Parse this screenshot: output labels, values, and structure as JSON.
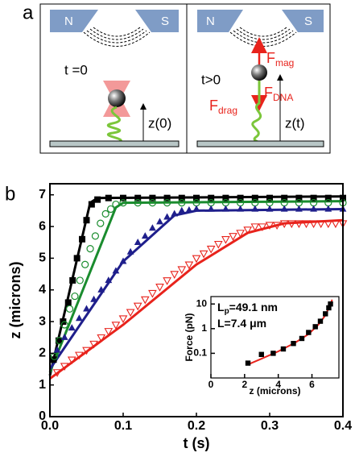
{
  "panel_a": {
    "label": "a",
    "left": {
      "north": "N",
      "south": "S",
      "time": "t =0",
      "height": "z(0)"
    },
    "right": {
      "north": "N",
      "south": "S",
      "time": "t>0",
      "height": "z(t)",
      "forces": [
        {
          "symbol": "F",
          "subscript": "mag"
        },
        {
          "symbol": "F",
          "subscript": "drag"
        },
        {
          "symbol": "F",
          "subscript": "DNA"
        }
      ]
    }
  },
  "chart_data": [
    {
      "type": "line",
      "panel_label": "b",
      "xlabel": "t (s)",
      "ylabel": "z (microns)",
      "xlim": [
        0,
        0.4
      ],
      "xticks": [
        {
          "value": 0,
          "label": "0.0"
        },
        0.1,
        0.2,
        0.3,
        0.4
      ],
      "ylim": [
        0,
        7.35
      ],
      "yticks": [
        0,
        1,
        2,
        3,
        4,
        5,
        6,
        7
      ],
      "series": [
        {
          "color": "#000000",
          "marker": "square",
          "x": [
            0.005,
            0.012,
            0.018,
            0.025,
            0.031,
            0.037,
            0.044,
            0.05,
            0.057,
            0.065,
            0.08,
            0.1,
            0.12,
            0.14,
            0.16,
            0.18,
            0.2,
            0.22,
            0.24,
            0.26,
            0.28,
            0.3,
            0.32,
            0.34,
            0.36,
            0.38,
            0.4
          ],
          "values": [
            1.8,
            2.4,
            3.0,
            3.6,
            4.3,
            5.0,
            5.6,
            6.2,
            6.7,
            6.85,
            6.9,
            6.9,
            6.9,
            6.9,
            6.9,
            6.9,
            6.9,
            6.9,
            6.9,
            6.9,
            6.9,
            6.9,
            6.9,
            6.9,
            6.9,
            6.9,
            6.9
          ]
        },
        {
          "color": "#1a8c2e",
          "marker": "circle",
          "x": [
            0.006,
            0.013,
            0.02,
            0.027,
            0.034,
            0.041,
            0.048,
            0.055,
            0.062,
            0.069,
            0.076,
            0.083,
            0.09,
            0.1,
            0.12,
            0.14,
            0.16,
            0.18,
            0.2,
            0.22,
            0.24,
            0.26,
            0.28,
            0.3,
            0.32,
            0.34,
            0.36,
            0.38,
            0.4
          ],
          "values": [
            1.9,
            2.4,
            2.9,
            3.4,
            3.8,
            4.3,
            4.8,
            5.3,
            5.7,
            6.1,
            6.4,
            6.55,
            6.7,
            6.75,
            6.75,
            6.75,
            6.75,
            6.75,
            6.75,
            6.75,
            6.75,
            6.75,
            6.75,
            6.75,
            6.75,
            6.75,
            6.75,
            6.75,
            6.75
          ]
        },
        {
          "color": "#1f1f8c",
          "marker": "triangle-up",
          "x": [
            0.01,
            0.02,
            0.03,
            0.04,
            0.05,
            0.06,
            0.07,
            0.08,
            0.09,
            0.1,
            0.11,
            0.12,
            0.13,
            0.14,
            0.15,
            0.16,
            0.17,
            0.18,
            0.19,
            0.2,
            0.22,
            0.24,
            0.26,
            0.28,
            0.3,
            0.32,
            0.34,
            0.36,
            0.38,
            0.4
          ],
          "values": [
            2.1,
            2.5,
            2.8,
            3.1,
            3.4,
            3.7,
            4.0,
            4.3,
            4.6,
            4.9,
            5.2,
            5.5,
            5.7,
            5.95,
            6.15,
            6.3,
            6.4,
            6.5,
            6.52,
            6.55,
            6.55,
            6.55,
            6.55,
            6.55,
            6.55,
            6.55,
            6.55,
            6.55,
            6.55,
            6.55
          ]
        },
        {
          "color": "#e8231c",
          "marker": "triangle-down-open",
          "x": [
            0.01,
            0.02,
            0.03,
            0.04,
            0.05,
            0.06,
            0.07,
            0.08,
            0.09,
            0.1,
            0.11,
            0.12,
            0.13,
            0.14,
            0.15,
            0.16,
            0.17,
            0.18,
            0.19,
            0.2,
            0.21,
            0.22,
            0.23,
            0.24,
            0.25,
            0.26,
            0.27,
            0.28,
            0.29,
            0.3,
            0.31,
            0.32,
            0.33,
            0.34,
            0.35,
            0.36,
            0.37,
            0.38,
            0.39,
            0.4
          ],
          "values": [
            1.4,
            1.6,
            1.8,
            1.95,
            2.1,
            2.3,
            2.5,
            2.7,
            2.9,
            3.1,
            3.3,
            3.5,
            3.7,
            3.9,
            4.1,
            4.3,
            4.5,
            4.65,
            4.8,
            5.0,
            5.15,
            5.3,
            5.45,
            5.6,
            5.7,
            5.8,
            5.9,
            6.0,
            6.0,
            6.05,
            6.05,
            6.1,
            6.1,
            6.1,
            6.1,
            6.1,
            6.1,
            6.1,
            6.1,
            6.1
          ]
        }
      ],
      "fits": [
        {
          "color": "#000000",
          "x": [
            0,
            0.055,
            0.065,
            0.4
          ],
          "values": [
            1.3,
            6.75,
            6.9,
            6.95
          ]
        },
        {
          "color": "#1a8c2e",
          "x": [
            0,
            0.09,
            0.1,
            0.4
          ],
          "values": [
            1.4,
            6.6,
            6.75,
            6.8
          ]
        },
        {
          "color": "#1f1f8c",
          "x": [
            0,
            0.1,
            0.17,
            0.2,
            0.4
          ],
          "values": [
            1.5,
            4.9,
            6.35,
            6.5,
            6.55
          ]
        },
        {
          "color": "#e8231c",
          "x": [
            0,
            0.1,
            0.2,
            0.27,
            0.32,
            0.4
          ],
          "values": [
            1.2,
            2.9,
            4.8,
            5.8,
            6.1,
            6.2
          ]
        }
      ]
    },
    {
      "type": "line",
      "xlabel": "z (microns)",
      "ylabel": "Force (pN)",
      "log_y": true,
      "xlim": [
        0,
        7.6
      ],
      "xticks": [
        0,
        2,
        4,
        6
      ],
      "ylim": [
        0.01,
        20
      ],
      "yticks": [
        0.1,
        1,
        10
      ],
      "annotations": [
        {
          "symbol": "L",
          "subscript": "p",
          "text": "=49.1 nm"
        },
        {
          "text": "L=7.4 μm"
        }
      ],
      "series": [
        {
          "color": "#000000",
          "marker": "square",
          "x": [
            2.2,
            3.0,
            3.7,
            4.3,
            4.9,
            5.4,
            5.8,
            6.2,
            6.5,
            6.8,
            7.0,
            7.1
          ],
          "values": [
            0.04,
            0.09,
            0.1,
            0.15,
            0.25,
            0.4,
            0.7,
            1.2,
            2,
            4,
            7,
            10
          ]
        }
      ],
      "fits": [
        {
          "color": "#e8231c",
          "x": [
            2.2,
            3.0,
            4.0,
            5.0,
            5.8,
            6.4,
            6.8,
            7.05,
            7.2
          ],
          "values": [
            0.035,
            0.06,
            0.12,
            0.27,
            0.6,
            1.5,
            3.5,
            8,
            15
          ]
        }
      ]
    }
  ]
}
